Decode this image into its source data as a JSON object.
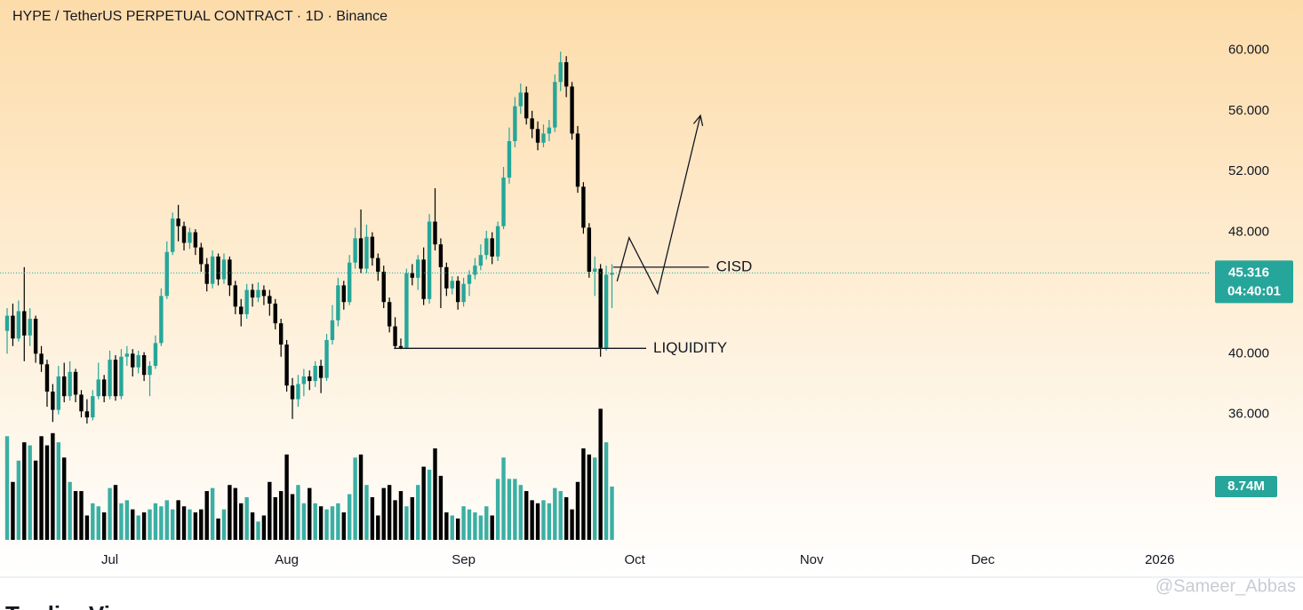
{
  "chart_data": {
    "type": "candlestick",
    "title": "HYPE / TetherUS PERPETUAL CONTRACT · 1D · Binance",
    "up_color": "#26a69a",
    "down_color": "#000000",
    "ylim": [
      27.5,
      63.3
    ],
    "yticks": [
      {
        "value": 60,
        "label": "60.000"
      },
      {
        "value": 56,
        "label": "56.000"
      },
      {
        "value": 52,
        "label": "52.000"
      },
      {
        "value": 48,
        "label": "48.000"
      },
      {
        "value": 40,
        "label": "40.000"
      },
      {
        "value": 36,
        "label": "36.000"
      }
    ],
    "xlim": [
      -1.25,
      210.6
    ],
    "xticks": [
      {
        "value": 18,
        "label": "Jul"
      },
      {
        "value": 49,
        "label": "Aug"
      },
      {
        "value": 80,
        "label": "Sep"
      },
      {
        "value": 110,
        "label": "Oct"
      },
      {
        "value": 141,
        "label": "Nov"
      },
      {
        "value": 171,
        "label": "Dec"
      },
      {
        "value": 202,
        "label": "2026"
      }
    ],
    "candles": [
      [
        41.5,
        43,
        40,
        42.5
      ],
      [
        42.5,
        43.3,
        40.5,
        41
      ],
      [
        41,
        43.5,
        40.8,
        42.8
      ],
      [
        42.8,
        45.7,
        39.5,
        41.2
      ],
      [
        41.2,
        43,
        40.5,
        42.3
      ],
      [
        42.3,
        42.5,
        39.4,
        40
      ],
      [
        40,
        40.5,
        38.8,
        39.3
      ],
      [
        39.3,
        39.6,
        36.5,
        37.5
      ],
      [
        37.5,
        38,
        35.5,
        36.3
      ],
      [
        36.3,
        39.2,
        36,
        38.5
      ],
      [
        38.5,
        39.4,
        36.8,
        37.2
      ],
      [
        37.2,
        39.5,
        36.9,
        38.8
      ],
      [
        38.8,
        39,
        36.8,
        37.3
      ],
      [
        37.3,
        37.6,
        35.8,
        36.2
      ],
      [
        36.2,
        37,
        35.4,
        35.8
      ],
      [
        35.8,
        37.6,
        35.6,
        37.2
      ],
      [
        37.2,
        39.4,
        37,
        38.3
      ],
      [
        38.3,
        38.6,
        36.8,
        37.2
      ],
      [
        37.2,
        40.2,
        37,
        39.6
      ],
      [
        39.6,
        39.9,
        36.9,
        37.2
      ],
      [
        37.2,
        40.3,
        37,
        39.8
      ],
      [
        39.8,
        40.5,
        39.2,
        40
      ],
      [
        40,
        40.3,
        38.5,
        39.1
      ],
      [
        39.1,
        40.2,
        38.7,
        39.9
      ],
      [
        39.9,
        40.1,
        38.2,
        38.6
      ],
      [
        38.6,
        39.5,
        37.2,
        39.2
      ],
      [
        39.2,
        41.2,
        39,
        40.7
      ],
      [
        40.7,
        44.3,
        40.5,
        43.8
      ],
      [
        43.8,
        47.4,
        43.6,
        46.7
      ],
      [
        46.7,
        49.3,
        46.5,
        48.9
      ],
      [
        48.9,
        49.8,
        47.4,
        48.4
      ],
      [
        48.4,
        48.7,
        46.8,
        47.3
      ],
      [
        47.3,
        48.3,
        46.9,
        48
      ],
      [
        48,
        48.2,
        46.5,
        47
      ],
      [
        47,
        47.3,
        45.4,
        45.9
      ],
      [
        45.9,
        46.3,
        44.1,
        44.6
      ],
      [
        44.6,
        46.8,
        44.3,
        46.4
      ],
      [
        46.4,
        46.6,
        44.5,
        44.9
      ],
      [
        44.9,
        46.6,
        44.6,
        46.2
      ],
      [
        46.2,
        46.4,
        43.8,
        44.5
      ],
      [
        44.5,
        44.8,
        42.6,
        43.1
      ],
      [
        43.1,
        43.6,
        41.8,
        42.6
      ],
      [
        42.6,
        44.6,
        42.3,
        44.2
      ],
      [
        44.2,
        44.6,
        43.1,
        43.7
      ],
      [
        43.7,
        44.7,
        43.4,
        44.2
      ],
      [
        44.2,
        44.5,
        43.2,
        43.8
      ],
      [
        43.8,
        44.2,
        42.5,
        43.3
      ],
      [
        43.3,
        43.6,
        41.6,
        42
      ],
      [
        42,
        42.3,
        39.8,
        40.6
      ],
      [
        40.6,
        40.9,
        37.5,
        37.9
      ],
      [
        37.9,
        38.4,
        35.7,
        37
      ],
      [
        37,
        38.6,
        36.5,
        38
      ],
      [
        38,
        39,
        37.2,
        38.5
      ],
      [
        38.5,
        38.9,
        37.6,
        38.2
      ],
      [
        38.2,
        39.5,
        37.8,
        39.2
      ],
      [
        39.2,
        39.6,
        37.4,
        38.4
      ],
      [
        38.4,
        41.3,
        38.2,
        40.9
      ],
      [
        40.9,
        43.2,
        40.6,
        42.2
      ],
      [
        42.2,
        45,
        41.8,
        44.5
      ],
      [
        44.5,
        44.8,
        42.9,
        43.4
      ],
      [
        43.4,
        46.5,
        43.2,
        46
      ],
      [
        46,
        48.3,
        45.6,
        47.6
      ],
      [
        47.6,
        49.5,
        45.3,
        45.6
      ],
      [
        45.6,
        48.5,
        45.3,
        47.7
      ],
      [
        47.7,
        48,
        45.8,
        46.3
      ],
      [
        46.3,
        46.6,
        44.8,
        45.4
      ],
      [
        45.4,
        45.8,
        43,
        43.4
      ],
      [
        43.4,
        43.7,
        41.4,
        41.8
      ],
      [
        41.8,
        42.4,
        40.3,
        40.5
      ],
      [
        40.5,
        41,
        40.3,
        40.4
      ],
      [
        40.4,
        45.6,
        40.3,
        45.3
      ],
      [
        45.3,
        45.9,
        44.5,
        45
      ],
      [
        45,
        46.5,
        44.2,
        46.2
      ],
      [
        46.2,
        47,
        43.2,
        43.6
      ],
      [
        43.6,
        49.2,
        43.3,
        48.7
      ],
      [
        48.7,
        50.9,
        46.8,
        47.2
      ],
      [
        47.2,
        47.6,
        43,
        45.7
      ],
      [
        45.7,
        46,
        43.8,
        44.3
      ],
      [
        44.3,
        45.1,
        43.9,
        44.8
      ],
      [
        44.8,
        45.1,
        42.9,
        43.4
      ],
      [
        43.4,
        45,
        43.1,
        44.6
      ],
      [
        44.6,
        45.5,
        43.8,
        45.2
      ],
      [
        45.2,
        46.3,
        44.9,
        45.8
      ],
      [
        45.8,
        47.2,
        45.5,
        46.5
      ],
      [
        46.5,
        48.1,
        46.2,
        47.6
      ],
      [
        47.6,
        48,
        45.9,
        46.4
      ],
      [
        46.4,
        48.7,
        46.1,
        48.4
      ],
      [
        48.4,
        52.3,
        48.2,
        51.6
      ],
      [
        51.6,
        54.9,
        51.2,
        54
      ],
      [
        54,
        56.9,
        53.6,
        56.3
      ],
      [
        56.3,
        57.8,
        55.8,
        57.2
      ],
      [
        57.2,
        57.6,
        55.1,
        55.5
      ],
      [
        55.5,
        56,
        54.2,
        54.8
      ],
      [
        54.8,
        55.3,
        53.4,
        53.9
      ],
      [
        53.9,
        55.1,
        53.6,
        54.5
      ],
      [
        54.5,
        55.4,
        54,
        54.9
      ],
      [
        54.9,
        58.4,
        54.6,
        57.9
      ],
      [
        57.9,
        59.9,
        57.3,
        59.2
      ],
      [
        59.2,
        59.6,
        56.9,
        57.6
      ],
      [
        57.6,
        57.9,
        54.1,
        54.5
      ],
      [
        54.5,
        55,
        50.6,
        51
      ],
      [
        51,
        51.3,
        47.9,
        48.3
      ],
      [
        48.3,
        48.6,
        45,
        45.4
      ],
      [
        45.4,
        46.4,
        43.8,
        45.6
      ],
      [
        45.6,
        45.9,
        39.8,
        40.4
      ],
      [
        40.4,
        45.8,
        40.2,
        45.2
      ],
      [
        45.2,
        45.9,
        43,
        45.316
      ]
    ],
    "volume": {
      "ylim": [
        0,
        30
      ],
      "values": [
        17,
        9.5,
        13,
        16,
        15.5,
        13,
        17,
        15.5,
        17.5,
        16,
        13.5,
        9.5,
        8,
        8,
        4,
        6,
        5.5,
        4.5,
        8.5,
        9,
        6,
        6.5,
        5,
        4,
        4.5,
        5,
        6,
        5.5,
        6.5,
        5,
        6.5,
        5.5,
        5,
        4.5,
        5,
        8,
        8.5,
        3.5,
        5,
        9,
        8.5,
        6,
        7,
        4.5,
        3,
        4,
        9.5,
        7,
        8,
        14,
        7.5,
        9,
        6,
        8.5,
        6,
        5.5,
        5,
        5.5,
        6,
        4.5,
        7.5,
        13.5,
        14,
        9,
        7,
        4,
        8.5,
        9,
        6.5,
        8,
        5.5,
        7,
        9,
        12,
        11.5,
        15,
        10.5,
        4.5,
        4,
        3.5,
        5.5,
        5,
        4.5,
        4,
        5.5,
        4,
        10,
        13.5,
        10,
        10,
        9,
        8,
        6.5,
        6,
        6.5,
        6,
        8.5,
        8,
        7,
        5,
        9.5,
        15,
        14,
        13.5,
        21.5,
        16,
        8.74
      ],
      "last_label": "8.74M"
    },
    "countdown": "04:40:01",
    "lines": [
      {
        "label": "LIQUIDITY",
        "x": [
          67.8,
          112
        ],
        "y": 40.35
      },
      {
        "label": "CISD",
        "x": [
          106.2,
          123
        ],
        "y": 45.7
      }
    ],
    "projection": {
      "x": [
        106.9,
        109,
        114,
        121.5
      ],
      "y": [
        44.77,
        47.64,
        43.97,
        55.69
      ]
    },
    "watermark": "@Sameer_Abbas",
    "footer": "TradingView"
  }
}
